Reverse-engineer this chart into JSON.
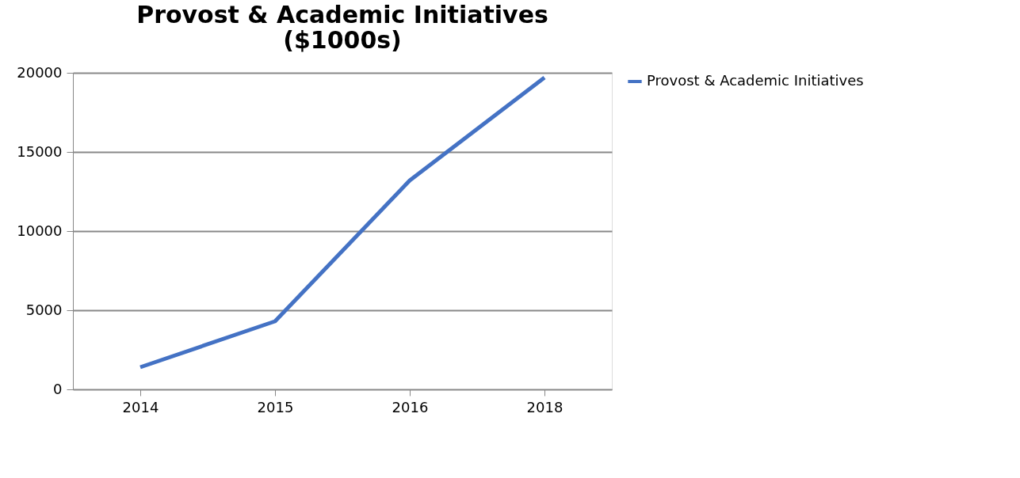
{
  "chart_data": {
    "type": "line",
    "title": "Provost & Academic Initiatives\n($1000s)",
    "categories": [
      "2014",
      "2015",
      "2016",
      "2018"
    ],
    "series": [
      {
        "name": "Provost & Academic Initiatives",
        "color": "#4472c4",
        "values": [
          1400,
          4300,
          13200,
          19700
        ]
      }
    ],
    "ylim": [
      0,
      20000
    ],
    "yticks": [
      0,
      5000,
      10000,
      15000,
      20000
    ],
    "grid": "y",
    "legend": "right",
    "marker": "none",
    "line_style": "solid"
  }
}
